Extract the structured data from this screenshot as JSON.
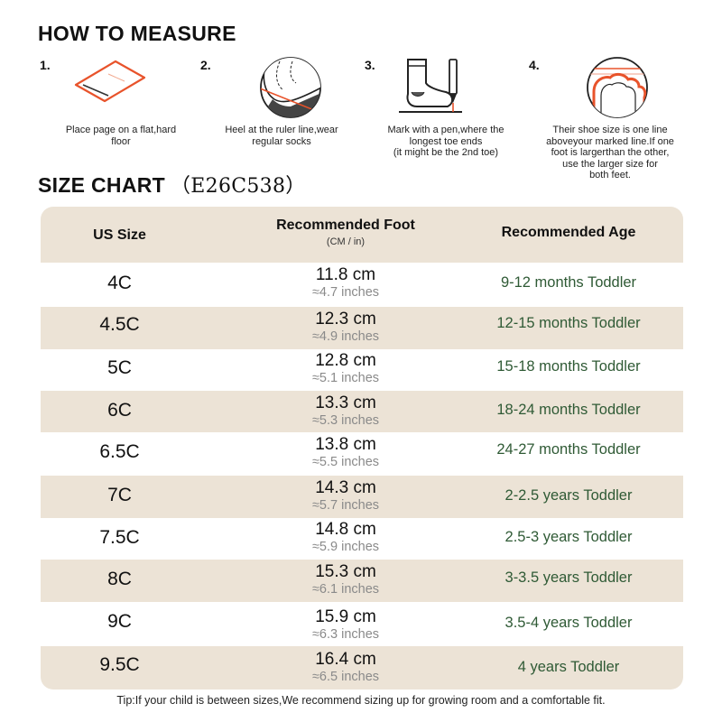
{
  "measure": {
    "title": "HOW TO MEASURE",
    "steps": [
      {
        "num": "1.",
        "icon": "paper-ruler-icon",
        "caption": "Place page on a flat,hard\nfloor"
      },
      {
        "num": "2.",
        "icon": "heel-on-line-icon",
        "caption": "Heel at the ruler line,wear\nregular socks"
      },
      {
        "num": "3.",
        "icon": "sock-pen-icon",
        "caption": "Mark with a pen,where the\nlongest toe ends\n(it might be the 2nd toe)"
      },
      {
        "num": "4.",
        "icon": "toe-line-icon",
        "caption": "Their shoe size is one line\naboveyour marked line.If one\nfoot is largerthan the other,\nuse the larger size for\nboth feet."
      }
    ]
  },
  "size_chart": {
    "title": "SIZE CHART",
    "model": "（E26C538）",
    "headers": {
      "size": "US Size",
      "foot": "Recommended Foot",
      "foot_sub": "(CM / in)",
      "age": "Recommended Age"
    },
    "rows": [
      {
        "size": "4C",
        "cm": "11.8 cm",
        "in": "≈4.7 inches",
        "age": "9-12 months Toddler"
      },
      {
        "size": "4.5C",
        "cm": "12.3 cm",
        "in": "≈4.9 inches",
        "age": "12-15 months Toddler"
      },
      {
        "size": "5C",
        "cm": "12.8 cm",
        "in": "≈5.1 inches",
        "age": "15-18 months Toddler"
      },
      {
        "size": "6C",
        "cm": "13.3 cm",
        "in": "≈5.3 inches",
        "age": "18-24 months Toddler"
      },
      {
        "size": "6.5C",
        "cm": "13.8 cm",
        "in": "≈5.5 inches",
        "age": "24-27 months Toddler"
      },
      {
        "size": "7C",
        "cm": "14.3 cm",
        "in": "≈5.7 inches",
        "age": "2-2.5 years Toddler"
      },
      {
        "size": "7.5C",
        "cm": "14.8 cm",
        "in": "≈5.9 inches",
        "age": "2.5-3 years Toddler"
      },
      {
        "size": "8C",
        "cm": "15.3 cm",
        "in": "≈6.1 inches",
        "age": "3-3.5 years Toddler"
      },
      {
        "size": "9C",
        "cm": "15.9 cm",
        "in": "≈6.3 inches",
        "age": "3.5-4 years Toddler"
      },
      {
        "size": "9.5C",
        "cm": "16.4 cm",
        "in": "≈6.5 inches",
        "age": "4 years Toddler"
      }
    ]
  },
  "tip": "Tip:If your child is between sizes,We recommend sizing up for growing room and a comfortable fit.",
  "colors": {
    "band": "#ece3d6",
    "age_text": "#2f5a35",
    "accent": "#e8532b"
  }
}
